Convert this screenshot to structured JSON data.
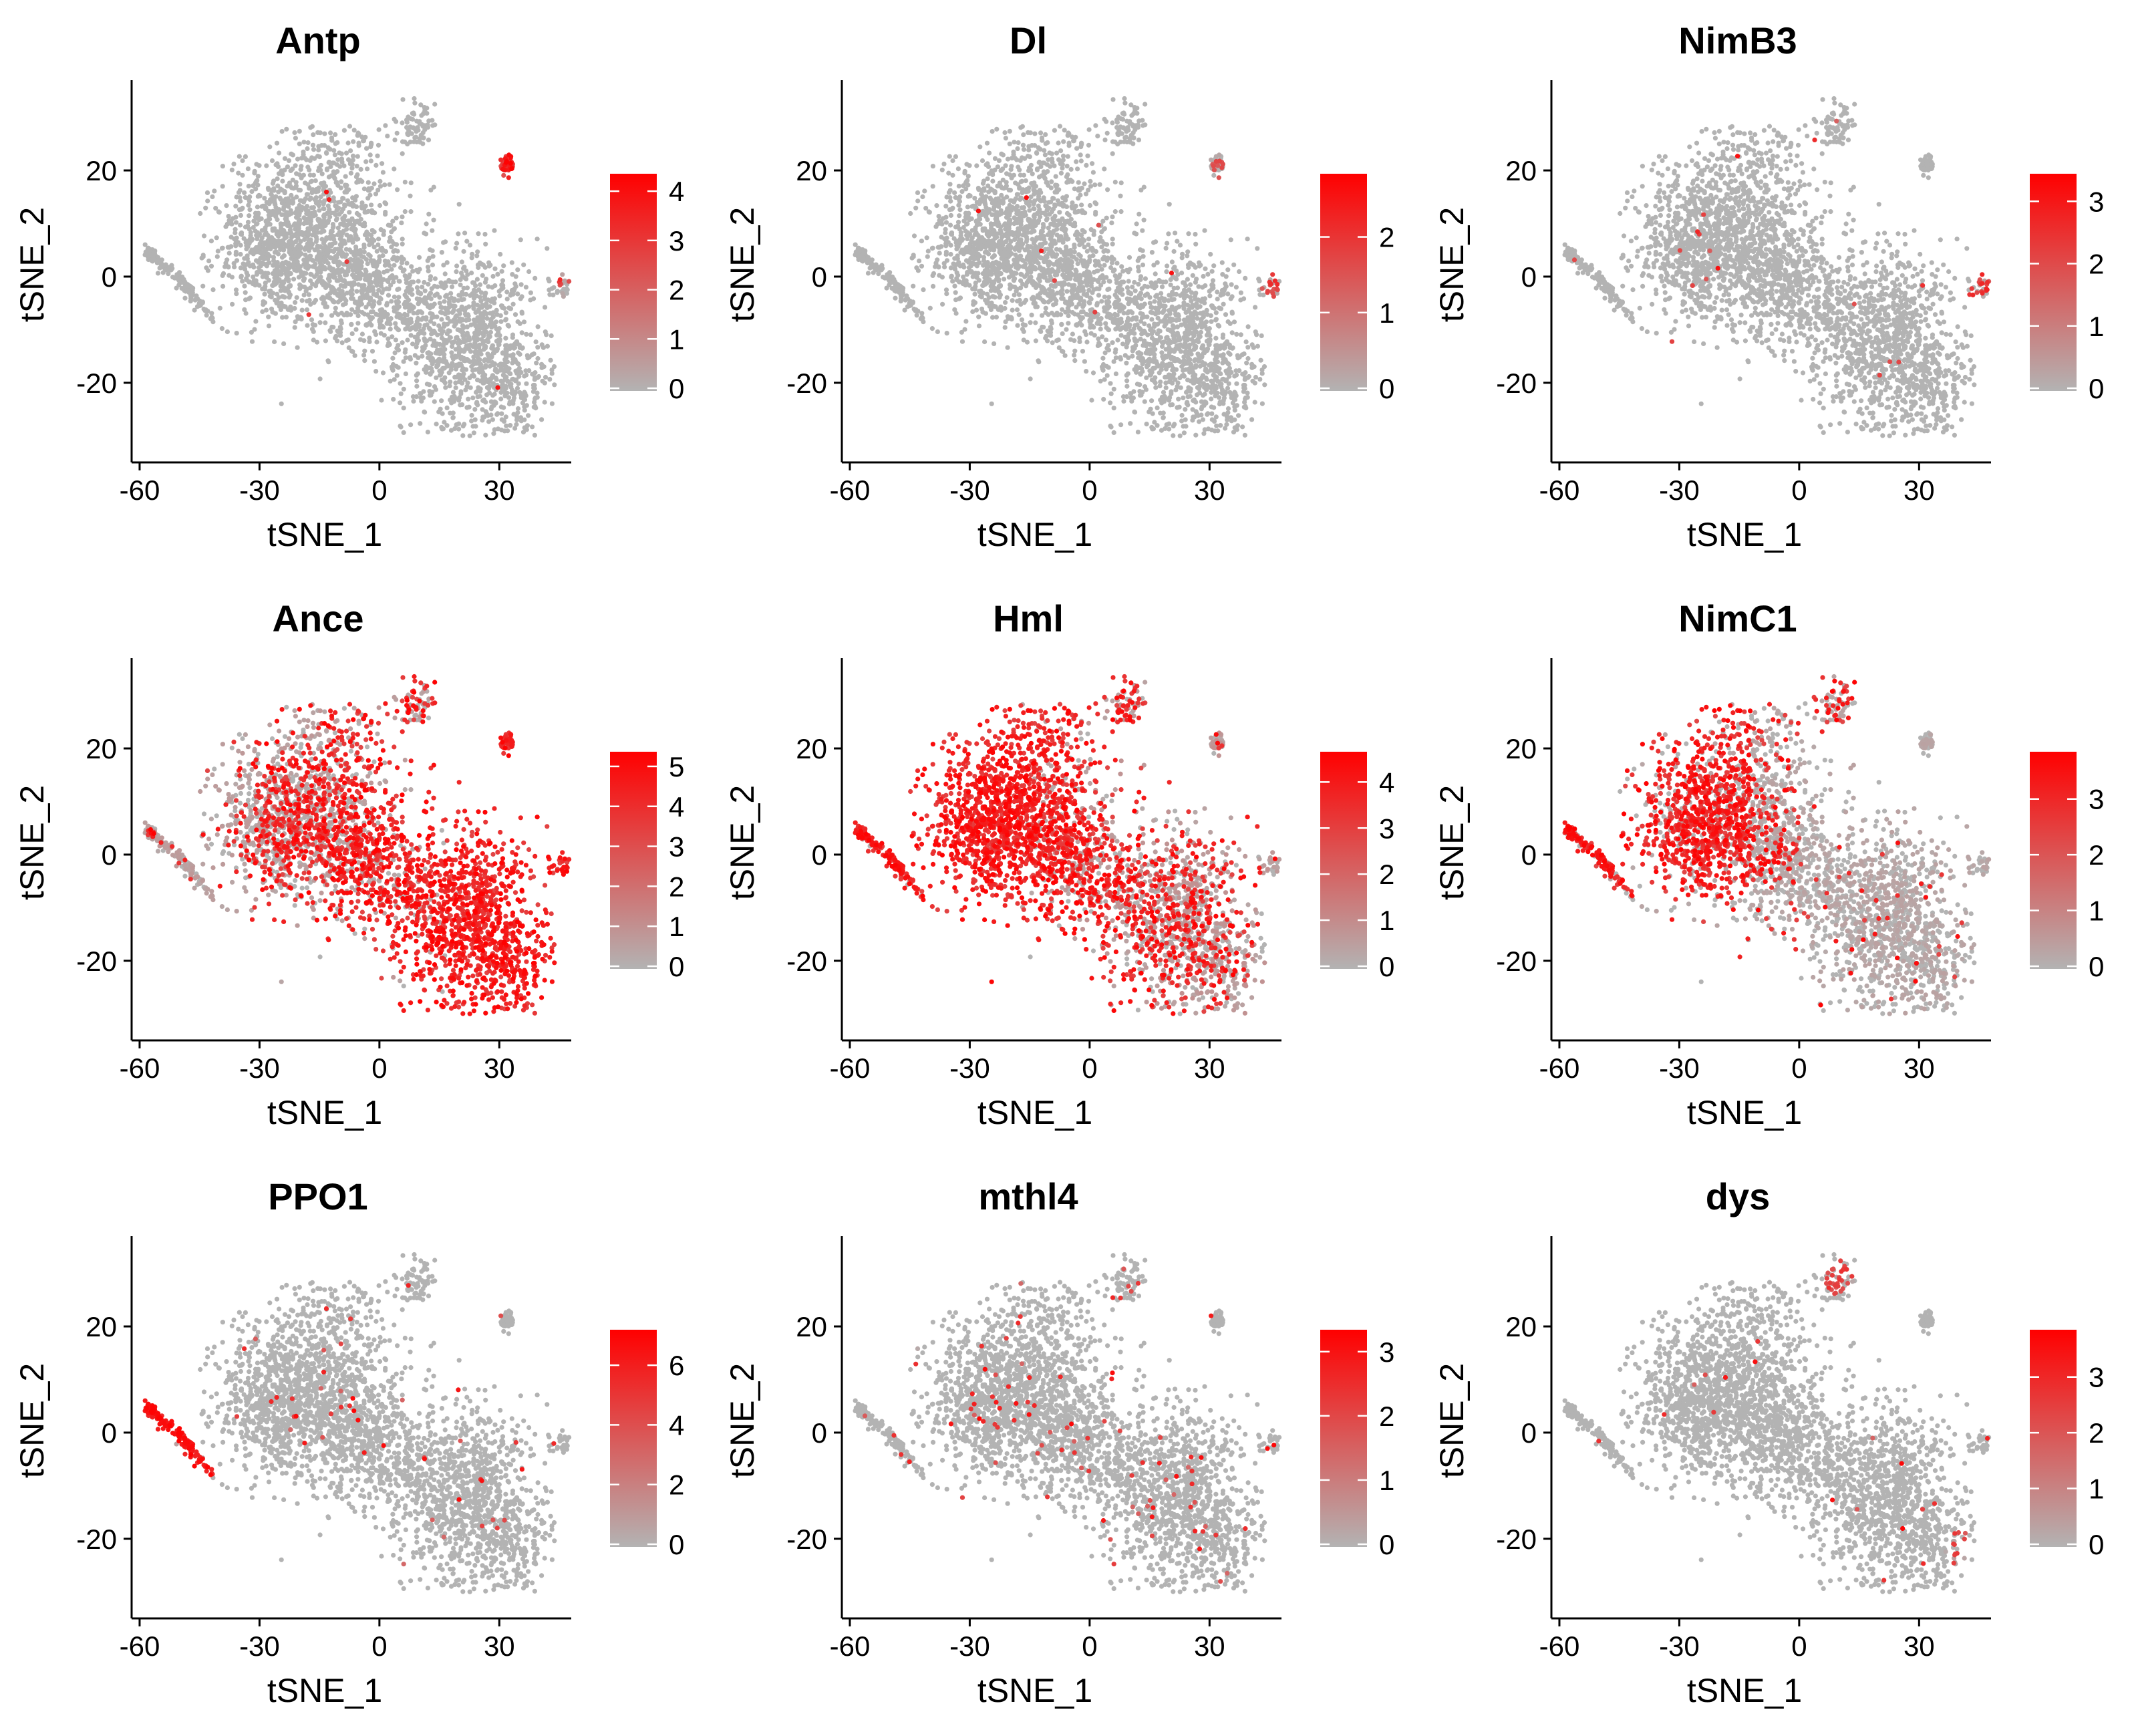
{
  "chart_data": [
    {
      "type": "scatter",
      "title": "Antp",
      "xlabel": "tSNE_1",
      "ylabel": "tSNE_2",
      "xlim": [
        -62,
        48
      ],
      "ylim": [
        -35,
        37
      ],
      "xticks": [
        "-60",
        "-30",
        "0",
        "30"
      ],
      "yticks": [
        "20",
        "0",
        "-20"
      ],
      "legend": {
        "placement": "right",
        "scale": "gradient",
        "min": 0,
        "max": 4.3,
        "ticks": [
          "0",
          "1",
          "2",
          "3",
          "4"
        ]
      },
      "colors": {
        "low": "#b3b3b3",
        "high": "#ff0000"
      },
      "pattern": {
        "mode": "clusters",
        "clusters": [
          [
            31,
            21,
            1.0,
            0.9
          ],
          [
            47,
            -1,
            0.6,
            0.3
          ]
        ],
        "sparse": 0.002
      }
    },
    {
      "type": "scatter",
      "title": "Dl",
      "xlabel": "tSNE_1",
      "ylabel": "tSNE_2",
      "xlim": [
        -62,
        48
      ],
      "ylim": [
        -35,
        37
      ],
      "xticks": [
        "-60",
        "-30",
        "0",
        "30"
      ],
      "yticks": [
        "20",
        "0",
        "-20"
      ],
      "legend": {
        "placement": "right",
        "scale": "gradient",
        "min": 0,
        "max": 2.8,
        "ticks": [
          "0",
          "1",
          "2"
        ]
      },
      "colors": {
        "low": "#b3b3b3",
        "high": "#ff0000"
      },
      "pattern": {
        "mode": "clusters",
        "clusters": [
          [
            46,
            -1,
            0.6,
            0.6
          ],
          [
            32,
            21,
            0.3,
            0.25
          ]
        ],
        "sparse": 0.002
      }
    },
    {
      "type": "scatter",
      "title": "NimB3",
      "xlabel": "tSNE_1",
      "ylabel": "tSNE_2",
      "xlim": [
        -62,
        48
      ],
      "ylim": [
        -35,
        37
      ],
      "xticks": [
        "-60",
        "-30",
        "0",
        "30"
      ],
      "yticks": [
        "20",
        "0",
        "-20"
      ],
      "legend": {
        "placement": "right",
        "scale": "gradient",
        "min": 0,
        "max": 3.4,
        "ticks": [
          "0",
          "1",
          "2",
          "3"
        ]
      },
      "colors": {
        "low": "#b3b3b3",
        "high": "#ff0000"
      },
      "pattern": {
        "mode": "clusters",
        "clusters": [
          [
            46,
            -3,
            0.7,
            0.8
          ]
        ],
        "sparse": 0.006
      }
    },
    {
      "type": "scatter",
      "title": "Ance",
      "xlabel": "tSNE_1",
      "ylabel": "tSNE_2",
      "xlim": [
        -62,
        48
      ],
      "ylim": [
        -35,
        37
      ],
      "xticks": [
        "-60",
        "-30",
        "0",
        "30"
      ],
      "yticks": [
        "20",
        "0",
        "-20"
      ],
      "legend": {
        "placement": "right",
        "scale": "gradient",
        "min": 0,
        "max": 5.3,
        "ticks": [
          "0",
          "1",
          "2",
          "3",
          "4",
          "5"
        ]
      },
      "colors": {
        "low": "#b3b3b3",
        "high": "#ff0000"
      },
      "pattern": {
        "mode": "ance"
      }
    },
    {
      "type": "scatter",
      "title": "Hml",
      "xlabel": "tSNE_1",
      "ylabel": "tSNE_2",
      "xlim": [
        -62,
        48
      ],
      "ylim": [
        -35,
        37
      ],
      "xticks": [
        "-60",
        "-30",
        "0",
        "30"
      ],
      "yticks": [
        "20",
        "0",
        "-20"
      ],
      "legend": {
        "placement": "right",
        "scale": "gradient",
        "min": 0,
        "max": 4.6,
        "ticks": [
          "0",
          "1",
          "2",
          "3",
          "4"
        ]
      },
      "colors": {
        "low": "#b3b3b3",
        "high": "#ff0000"
      },
      "pattern": {
        "mode": "hml"
      }
    },
    {
      "type": "scatter",
      "title": "NimC1",
      "xlabel": "tSNE_1",
      "ylabel": "tSNE_2",
      "xlim": [
        -62,
        48
      ],
      "ylim": [
        -35,
        37
      ],
      "xticks": [
        "-60",
        "-30",
        "0",
        "30"
      ],
      "yticks": [
        "20",
        "0",
        "-20"
      ],
      "legend": {
        "placement": "right",
        "scale": "gradient",
        "min": 0,
        "max": 3.8,
        "ticks": [
          "0",
          "1",
          "2",
          "3"
        ]
      },
      "colors": {
        "low": "#b3b3b3",
        "high": "#ff0000"
      },
      "pattern": {
        "mode": "nimc1"
      }
    },
    {
      "type": "scatter",
      "title": "PPO1",
      "xlabel": "tSNE_1",
      "ylabel": "tSNE_2",
      "xlim": [
        -62,
        48
      ],
      "ylim": [
        -35,
        37
      ],
      "xticks": [
        "-60",
        "-30",
        "0",
        "30"
      ],
      "yticks": [
        "20",
        "0",
        "-20"
      ],
      "legend": {
        "placement": "right",
        "scale": "gradient",
        "min": 0,
        "max": 7.1,
        "ticks": [
          "0",
          "2",
          "4",
          "6"
        ]
      },
      "colors": {
        "low": "#b3b3b3",
        "high": "#ff0000"
      },
      "pattern": {
        "mode": "clusters",
        "clusters": [
          [
            -1,
            0,
            0.85,
            1.0
          ]
        ],
        "strand": true,
        "sparse": 0.015
      }
    },
    {
      "type": "scatter",
      "title": "mthl4",
      "xlabel": "tSNE_1",
      "ylabel": "tSNE_2",
      "xlim": [
        -62,
        48
      ],
      "ylim": [
        -35,
        37
      ],
      "xticks": [
        "-60",
        "-30",
        "0",
        "30"
      ],
      "yticks": [
        "20",
        "0",
        "-20"
      ],
      "legend": {
        "placement": "right",
        "scale": "gradient",
        "min": 0,
        "max": 3.3,
        "ticks": [
          "0",
          "1",
          "2",
          "3"
        ]
      },
      "colors": {
        "low": "#b3b3b3",
        "high": "#ff0000"
      },
      "pattern": {
        "mode": "clusters",
        "clusters": [
          [
            -44,
            19,
            0.8,
            0.8
          ]
        ],
        "sparse": 0.03
      }
    },
    {
      "type": "scatter",
      "title": "dys",
      "xlabel": "tSNE_1",
      "ylabel": "tSNE_2",
      "xlim": [
        -62,
        48
      ],
      "ylim": [
        -35,
        37
      ],
      "xticks": [
        "-60",
        "-30",
        "0",
        "30"
      ],
      "yticks": [
        "20",
        "0",
        "-20"
      ],
      "legend": {
        "placement": "right",
        "scale": "gradient",
        "min": 0,
        "max": 3.8,
        "ticks": [
          "0",
          "1",
          "2",
          "3"
        ]
      },
      "colors": {
        "low": "#b3b3b3",
        "high": "#ff0000"
      },
      "pattern": {
        "mode": "clusters",
        "clusters": [
          [
            10,
            29,
            0.5,
            0.6
          ],
          [
            40,
            -22,
            0.5,
            0.5
          ]
        ],
        "sparse": 0.004
      }
    }
  ]
}
